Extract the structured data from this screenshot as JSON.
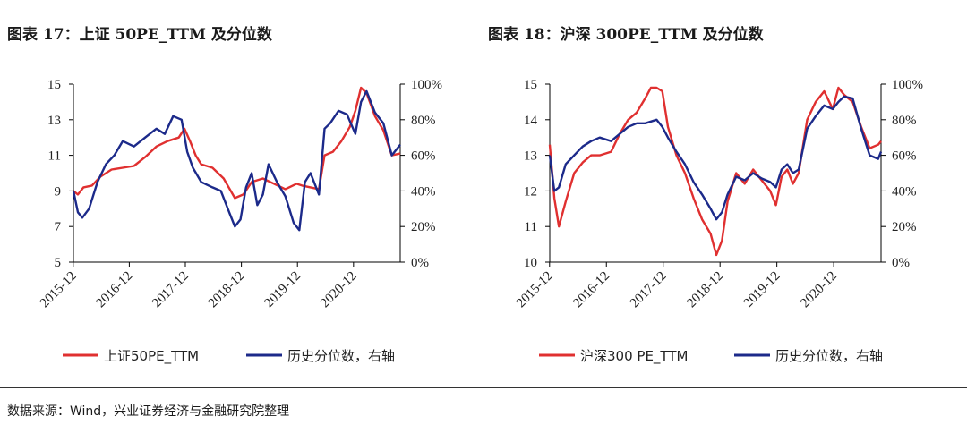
{
  "source": "数据来源：Wind，兴业证券经济与金融研究院整理",
  "colors": {
    "pe": "#e03030",
    "pct": "#1c2a8a",
    "axis": "#000000"
  },
  "chart_data": [
    {
      "type": "line",
      "title": "图表 17：上证 50PE_TTM 及分位数",
      "x_ticks": [
        "2015-12",
        "2016-12",
        "2017-12",
        "2018-12",
        "2019-12",
        "2020-12"
      ],
      "x_range": [
        2015.92,
        2021.75
      ],
      "y_left": {
        "ticks": [
          "15",
          "13",
          "11",
          "9",
          "7",
          "5"
        ],
        "range": [
          5,
          15
        ]
      },
      "y_right": {
        "ticks": [
          "100%",
          "80%",
          "60%",
          "40%",
          "20%",
          "0%"
        ],
        "range": [
          0,
          100
        ]
      },
      "series": [
        {
          "name": "上证50PE_TTM",
          "axis": "left",
          "x": [
            2015.92,
            2016.0,
            2016.1,
            2016.25,
            2016.4,
            2016.6,
            2016.8,
            2017.0,
            2017.2,
            2017.4,
            2017.6,
            2017.8,
            2017.9,
            2018.0,
            2018.1,
            2018.2,
            2018.4,
            2018.6,
            2018.8,
            2018.95,
            2019.1,
            2019.3,
            2019.5,
            2019.7,
            2019.9,
            2020.0,
            2020.15,
            2020.3,
            2020.4,
            2020.55,
            2020.7,
            2020.85,
            2020.95,
            2021.05,
            2021.15,
            2021.3,
            2021.45,
            2021.6,
            2021.75
          ],
          "values": [
            9.0,
            8.8,
            9.2,
            9.3,
            9.8,
            10.2,
            10.3,
            10.4,
            10.9,
            11.5,
            11.8,
            12.0,
            12.5,
            11.8,
            11.0,
            10.5,
            10.3,
            9.7,
            8.6,
            8.8,
            9.5,
            9.7,
            9.4,
            9.1,
            9.4,
            9.3,
            9.2,
            9.1,
            11.0,
            11.2,
            11.8,
            12.6,
            13.5,
            14.8,
            14.5,
            13.2,
            12.4,
            11.0,
            11.1
          ]
        },
        {
          "name": "历史分位数，右轴",
          "axis": "right",
          "x": [
            2015.92,
            2016.0,
            2016.08,
            2016.2,
            2016.35,
            2016.5,
            2016.65,
            2016.8,
            2017.0,
            2017.2,
            2017.4,
            2017.55,
            2017.7,
            2017.85,
            2017.95,
            2018.05,
            2018.2,
            2018.4,
            2018.55,
            2018.7,
            2018.8,
            2018.9,
            2019.0,
            2019.1,
            2019.2,
            2019.3,
            2019.4,
            2019.55,
            2019.7,
            2019.85,
            2019.95,
            2020.05,
            2020.15,
            2020.3,
            2020.4,
            2020.5,
            2020.65,
            2020.8,
            2020.95,
            2021.05,
            2021.15,
            2021.3,
            2021.45,
            2021.6,
            2021.75
          ],
          "values": [
            40,
            28,
            25,
            30,
            45,
            55,
            60,
            68,
            65,
            70,
            75,
            72,
            82,
            80,
            62,
            53,
            45,
            42,
            40,
            28,
            20,
            24,
            42,
            50,
            32,
            38,
            55,
            45,
            37,
            22,
            18,
            45,
            50,
            38,
            75,
            78,
            85,
            83,
            72,
            90,
            96,
            84,
            78,
            60,
            66
          ]
        }
      ]
    },
    {
      "type": "line",
      "title": "图表 18：沪深 300PE_TTM 及分位数",
      "x_ticks": [
        "2015-12",
        "2016-12",
        "2017-12",
        "2018-12",
        "2019-12",
        "2020-12"
      ],
      "x_range": [
        2015.92,
        2021.75
      ],
      "y_left": {
        "ticks": [
          "15",
          "14",
          "13",
          "12",
          "11",
          "10"
        ],
        "range": [
          10,
          15
        ]
      },
      "y_right": {
        "ticks": [
          "100%",
          "80%",
          "60%",
          "40%",
          "20%",
          "0%"
        ],
        "range": [
          0,
          100
        ]
      },
      "series": [
        {
          "name": "沪深300 PE_TTM",
          "axis": "left",
          "x": [
            2015.92,
            2016.0,
            2016.08,
            2016.2,
            2016.35,
            2016.5,
            2016.65,
            2016.8,
            2017.0,
            2017.15,
            2017.3,
            2017.45,
            2017.6,
            2017.7,
            2017.8,
            2017.9,
            2018.0,
            2018.15,
            2018.3,
            2018.45,
            2018.6,
            2018.75,
            2018.85,
            2018.95,
            2019.05,
            2019.2,
            2019.35,
            2019.5,
            2019.65,
            2019.8,
            2019.9,
            2020.0,
            2020.1,
            2020.2,
            2020.3,
            2020.45,
            2020.6,
            2020.75,
            2020.9,
            2021.0,
            2021.1,
            2021.25,
            2021.4,
            2021.55,
            2021.7,
            2021.75
          ],
          "values": [
            13.3,
            11.8,
            11.0,
            11.7,
            12.5,
            12.8,
            13.0,
            13.0,
            13.1,
            13.6,
            14.0,
            14.2,
            14.6,
            14.9,
            14.9,
            14.8,
            13.8,
            13.0,
            12.5,
            11.8,
            11.2,
            10.8,
            10.2,
            10.6,
            11.7,
            12.5,
            12.2,
            12.6,
            12.3,
            12.0,
            11.6,
            12.4,
            12.6,
            12.2,
            12.5,
            14.0,
            14.5,
            14.8,
            14.3,
            14.9,
            14.7,
            14.5,
            13.8,
            13.2,
            13.3,
            13.4
          ]
        },
        {
          "name": "历史分位数，右轴",
          "axis": "right",
          "x": [
            2015.92,
            2016.0,
            2016.08,
            2016.2,
            2016.35,
            2016.5,
            2016.65,
            2016.8,
            2017.0,
            2017.15,
            2017.3,
            2017.45,
            2017.6,
            2017.7,
            2017.8,
            2017.9,
            2018.0,
            2018.15,
            2018.3,
            2018.45,
            2018.6,
            2018.75,
            2018.85,
            2018.95,
            2019.05,
            2019.2,
            2019.35,
            2019.5,
            2019.65,
            2019.8,
            2019.9,
            2020.0,
            2020.1,
            2020.2,
            2020.3,
            2020.45,
            2020.6,
            2020.75,
            2020.9,
            2021.0,
            2021.1,
            2021.25,
            2021.4,
            2021.55,
            2021.7,
            2021.75
          ],
          "values": [
            60,
            40,
            42,
            55,
            60,
            65,
            68,
            70,
            68,
            72,
            76,
            78,
            78,
            79,
            80,
            76,
            70,
            62,
            55,
            45,
            38,
            30,
            24,
            28,
            38,
            48,
            46,
            50,
            47,
            45,
            42,
            52,
            55,
            50,
            52,
            75,
            82,
            88,
            86,
            90,
            93,
            92,
            75,
            60,
            58,
            62
          ]
        }
      ]
    }
  ],
  "legends": [
    {
      "pe": "上证50PE_TTM",
      "pct": "历史分位数，右轴"
    },
    {
      "pe": "沪深300 PE_TTM",
      "pct": "历史分位数，右轴"
    }
  ]
}
